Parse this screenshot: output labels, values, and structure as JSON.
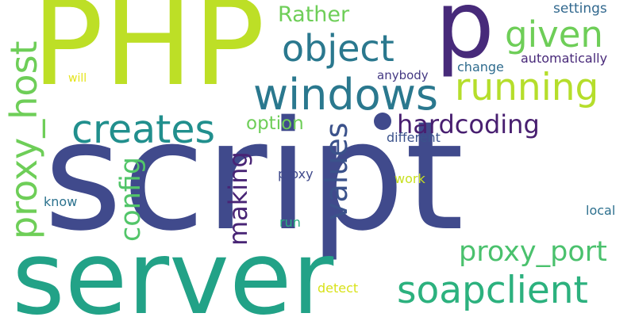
{
  "words": [
    {
      "id": "script",
      "text": "script",
      "color": "#404a8c"
    },
    {
      "id": "server",
      "text": "server",
      "color": "#22a287"
    },
    {
      "id": "php",
      "text": "PHP",
      "color": "#bddf26"
    },
    {
      "id": "p",
      "text": "p",
      "color": "#472a7a"
    },
    {
      "id": "windows",
      "text": "windows",
      "color": "#2a788e"
    },
    {
      "id": "object",
      "text": "object",
      "color": "#2a788e"
    },
    {
      "id": "running",
      "text": "running",
      "color": "#b5de2b"
    },
    {
      "id": "given",
      "text": "given",
      "color": "#6ece58"
    },
    {
      "id": "creates",
      "text": "creates",
      "color": "#218f8d"
    },
    {
      "id": "soapclient",
      "text": "soapclient",
      "color": "#2cb17e"
    },
    {
      "id": "proxy_host",
      "text": "proxy_host",
      "color": "#6ece58"
    },
    {
      "id": "proxy_port",
      "text": "proxy_port",
      "color": "#4ac16d"
    },
    {
      "id": "hardcoding",
      "text": "hardcoding",
      "color": "#481f70"
    },
    {
      "id": "values",
      "text": "values",
      "color": "#3b528b"
    },
    {
      "id": "config",
      "text": "config",
      "color": "#52c569"
    },
    {
      "id": "making",
      "text": "making",
      "color": "#482475"
    },
    {
      "id": "rather",
      "text": "Rather",
      "color": "#6ece58"
    },
    {
      "id": "option",
      "text": "option",
      "color": "#6ece58"
    },
    {
      "id": "settings",
      "text": "settings",
      "color": "#31688e"
    },
    {
      "id": "automatically",
      "text": "automatically",
      "color": "#482979"
    },
    {
      "id": "change",
      "text": "change",
      "color": "#2f6c8e"
    },
    {
      "id": "anybody",
      "text": "anybody",
      "color": "#443983"
    },
    {
      "id": "different",
      "text": "different",
      "color": "#3b528b"
    },
    {
      "id": "will",
      "text": "will",
      "color": "#e5e419"
    },
    {
      "id": "proxy",
      "text": "proxy",
      "color": "#404a8c"
    },
    {
      "id": "work",
      "text": "work",
      "color": "#c8e020"
    },
    {
      "id": "know",
      "text": "know",
      "color": "#2c728e"
    },
    {
      "id": "run",
      "text": "run",
      "color": "#28ae80"
    },
    {
      "id": "local",
      "text": "local",
      "color": "#2d708e"
    },
    {
      "id": "detect",
      "text": "detect",
      "color": "#d8e219"
    }
  ],
  "dot_color": "#404a8c"
}
